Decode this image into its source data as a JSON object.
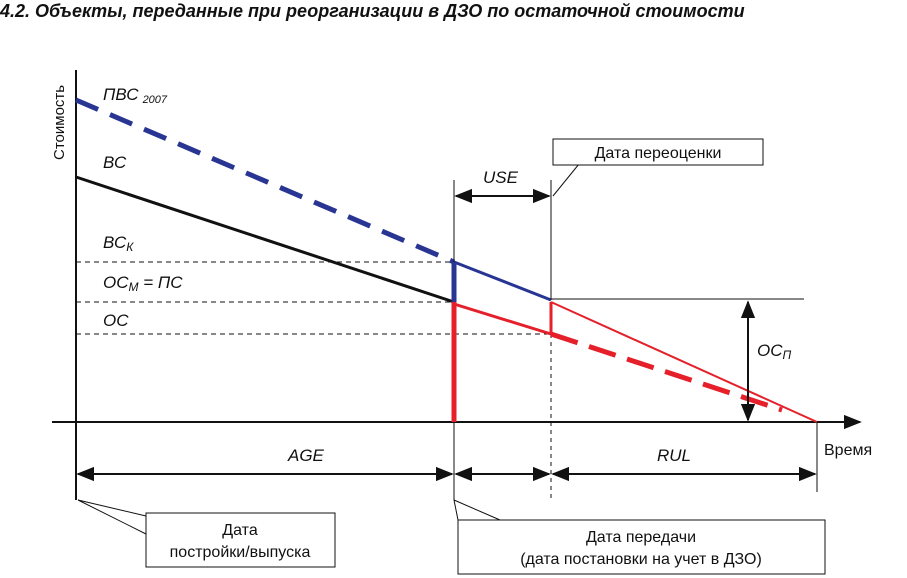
{
  "title": "4.2. Объекты, переданные при реорганизации в ДЗО по остаточной стоимости",
  "axes": {
    "y_label": "Стоимость",
    "x_label": "Время"
  },
  "levels": {
    "pvs_main": "ПВС",
    "pvs_sub": "2007",
    "vs": "ВС",
    "vsk_main": "ВС",
    "vsk_sub": "К",
    "ocm_main": "ОС",
    "ocm_sub": "М",
    "ocm_rest": " = ПС",
    "oc": "ОС",
    "ocp_main": "ОС",
    "ocp_sub": "П"
  },
  "intervals": {
    "use": "USE",
    "age": "AGE",
    "rul": "RUL"
  },
  "callouts": {
    "revaluation_date": "Дата переоценки",
    "build_date_line1": "Дата",
    "build_date_line2": "постройки/выпуска",
    "transfer_date_line1": "Дата передачи",
    "transfer_date_line2": "(дата постановки на учет в ДЗО)"
  },
  "colors": {
    "blue": "#283593",
    "red": "#e5202a",
    "black": "#111111"
  }
}
